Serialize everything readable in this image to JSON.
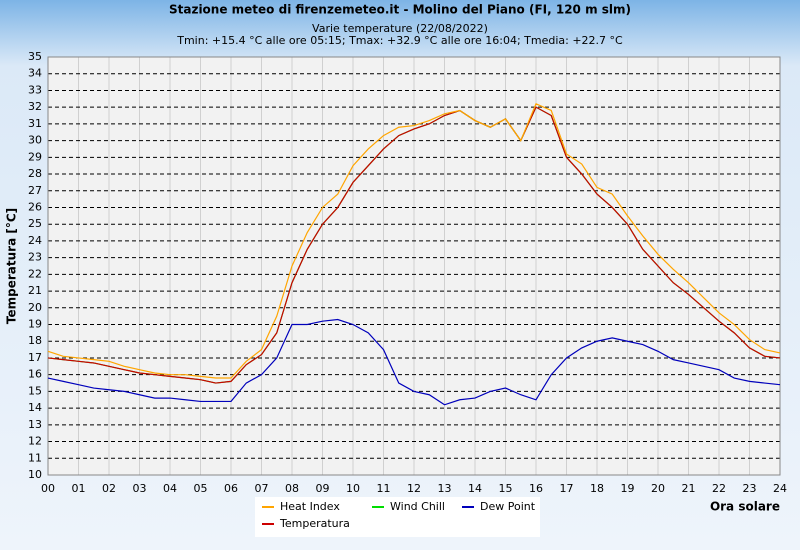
{
  "chart_data": {
    "type": "line",
    "title": "Stazione meteo di firenzemeteo.it - Molino del Piano (FI, 120 m slm)",
    "subtitle": "Varie temperature (22/08/2022)",
    "annotation": "Tmin: +15.4 °C alle ore 05:15; Tmax: +32.9 °C alle ore 16:04; Tmedia: +22.7 °C",
    "y_label": "Temperatura [°C]",
    "x_label": "Ora solare",
    "x": [
      0,
      0.5,
      1,
      1.5,
      2,
      2.5,
      3,
      3.5,
      4,
      4.5,
      5,
      5.5,
      6,
      6.5,
      7,
      7.5,
      8,
      8.5,
      9,
      9.5,
      10,
      10.5,
      11,
      11.5,
      12,
      12.5,
      13,
      13.5,
      14,
      14.5,
      15,
      15.5,
      16,
      16.5,
      17,
      17.5,
      18,
      18.5,
      19,
      19.5,
      20,
      20.5,
      21,
      21.5,
      22,
      22.5,
      23,
      23.5,
      24
    ],
    "series": [
      {
        "name": "Wind Chill",
        "color": "#00dd00",
        "values": [
          17.0,
          16.9,
          16.8,
          16.7,
          16.5,
          16.3,
          16.1,
          16.0,
          15.9,
          15.8,
          15.7,
          15.5,
          15.6,
          16.6,
          17.2,
          18.5,
          21.5,
          23.5,
          25.0,
          26.0,
          27.5,
          28.5,
          29.5,
          30.3,
          30.7,
          31.0,
          31.5,
          31.8,
          31.2,
          30.8,
          31.3,
          30.0,
          32.0,
          31.5,
          29.0,
          28.0,
          26.8,
          26.0,
          25.0,
          23.5,
          22.5,
          21.5,
          20.8,
          20.0,
          19.2,
          18.5,
          17.6,
          17.1,
          17.0
        ]
      },
      {
        "name": "Temperatura",
        "color": "#cc0000",
        "values": [
          17.0,
          16.9,
          16.8,
          16.7,
          16.5,
          16.3,
          16.1,
          16.0,
          15.9,
          15.8,
          15.7,
          15.5,
          15.6,
          16.6,
          17.2,
          18.5,
          21.5,
          23.5,
          25.0,
          26.0,
          27.5,
          28.5,
          29.5,
          30.3,
          30.7,
          31.0,
          31.5,
          31.8,
          31.2,
          30.8,
          31.3,
          30.0,
          32.0,
          31.5,
          29.0,
          28.0,
          26.8,
          26.0,
          25.0,
          23.5,
          22.5,
          21.5,
          20.8,
          20.0,
          19.2,
          18.5,
          17.6,
          17.1,
          17.0
        ]
      },
      {
        "name": "Heat Index",
        "color": "#ffa500",
        "values": [
          17.4,
          17.1,
          17.0,
          16.9,
          16.8,
          16.5,
          16.3,
          16.1,
          16.0,
          16.0,
          15.9,
          15.8,
          15.8,
          16.8,
          17.5,
          19.5,
          22.5,
          24.5,
          26.0,
          26.8,
          28.5,
          29.5,
          30.3,
          30.8,
          30.9,
          31.2,
          31.6,
          31.8,
          31.2,
          30.8,
          31.3,
          30.0,
          32.2,
          31.8,
          29.2,
          28.6,
          27.2,
          26.8,
          25.5,
          24.3,
          23.2,
          22.3,
          21.5,
          20.6,
          19.7,
          19.0,
          18.1,
          17.5,
          17.3
        ]
      },
      {
        "name": "Dew Point",
        "color": "#0000bb",
        "values": [
          15.8,
          15.6,
          15.4,
          15.2,
          15.1,
          15.0,
          14.8,
          14.6,
          14.6,
          14.5,
          14.4,
          14.4,
          14.4,
          15.5,
          16.0,
          17.0,
          19.0,
          19.0,
          19.2,
          19.3,
          19.0,
          18.5,
          17.5,
          15.5,
          15.0,
          14.8,
          14.2,
          14.5,
          14.6,
          15.0,
          15.2,
          14.8,
          14.5,
          16.0,
          17.0,
          17.6,
          18.0,
          18.2,
          18.0,
          17.8,
          17.4,
          16.9,
          16.7,
          16.5,
          16.3,
          15.8,
          15.6,
          15.5,
          15.4
        ]
      }
    ],
    "xlim": [
      0,
      24
    ],
    "xticks": [
      {
        "value": 0,
        "label": "00"
      },
      {
        "value": 1,
        "label": "01"
      },
      {
        "value": 2,
        "label": "02"
      },
      {
        "value": 3,
        "label": "03"
      },
      {
        "value": 4,
        "label": "04"
      },
      {
        "value": 5,
        "label": "05"
      },
      {
        "value": 6,
        "label": "06"
      },
      {
        "value": 7,
        "label": "07"
      },
      {
        "value": 8,
        "label": "08"
      },
      {
        "value": 9,
        "label": "09"
      },
      10,
      11,
      12,
      13,
      14,
      15,
      16,
      17,
      18,
      19,
      20,
      21,
      22,
      23,
      24
    ],
    "ylim": [
      10,
      35
    ],
    "yticks": [
      10,
      11,
      12,
      13,
      14,
      15,
      16,
      17,
      18,
      19,
      20,
      21,
      22,
      23,
      24,
      25,
      26,
      27,
      28,
      29,
      30,
      31,
      32,
      33,
      34,
      35
    ],
    "grid": true
  }
}
